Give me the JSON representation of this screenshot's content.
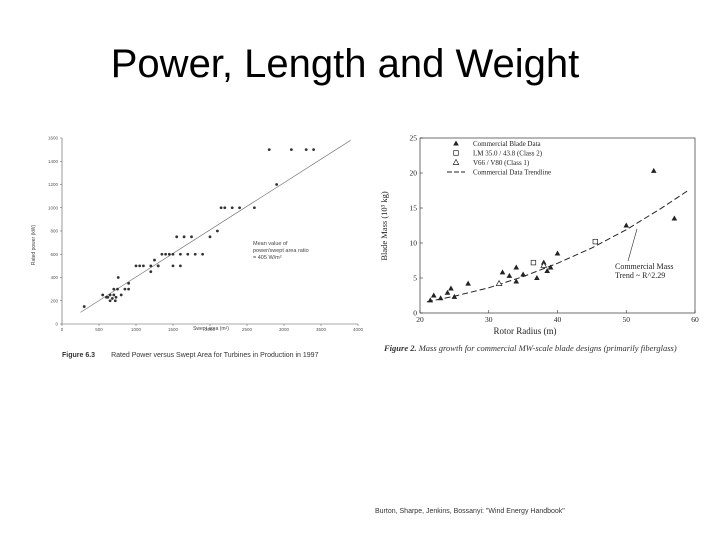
{
  "slide": {
    "title": "Power, Length and Weight",
    "citation": "Burton, Sharpe, Jenkins, Bossanyi: \"Wind Energy Handbook\""
  },
  "chart_data": [
    {
      "type": "scatter",
      "figure_label": "Figure 6.3",
      "caption": "Rated Power versus Swept Area for Turbines in Production in 1997",
      "xlabel": "Swept area (m²)",
      "ylabel": "Rated power (kW)",
      "xlim": [
        0,
        4000
      ],
      "ylim": [
        0,
        1600
      ],
      "x_ticks": [
        "0",
        "500",
        "1000",
        "1500",
        "2000",
        "2500",
        "3000",
        "3500",
        "4000"
      ],
      "y_ticks": [
        "0",
        "200",
        "400",
        "600",
        "800",
        "1000",
        "1200",
        "1400",
        "1600"
      ],
      "annotation": [
        "Mean value of",
        "power/swept area ratio",
        "= 405 W/m²"
      ],
      "grid": false,
      "trend_line": {
        "x": [
          250,
          3900
        ],
        "y": [
          100,
          1580
        ]
      },
      "points": {
        "x": [
          300,
          550,
          600,
          620,
          650,
          650,
          680,
          700,
          700,
          720,
          730,
          750,
          760,
          800,
          850,
          900,
          900,
          1000,
          1050,
          1100,
          1200,
          1200,
          1250,
          1300,
          1300,
          1350,
          1400,
          1450,
          1500,
          1500,
          1550,
          1600,
          1600,
          1650,
          1700,
          1750,
          1800,
          1900,
          2000,
          2100,
          2150,
          2200,
          2300,
          2400,
          2600,
          2800,
          2900,
          3100,
          3300,
          3400
        ],
        "y": [
          150,
          250,
          230,
          230,
          250,
          200,
          220,
          250,
          300,
          200,
          230,
          300,
          400,
          250,
          300,
          350,
          300,
          500,
          500,
          500,
          500,
          450,
          550,
          500,
          500,
          600,
          600,
          600,
          600,
          500,
          750,
          500,
          600,
          750,
          600,
          750,
          600,
          600,
          750,
          800,
          1000,
          1000,
          1000,
          1000,
          1000,
          1500,
          1200,
          1500,
          1500,
          1500
        ]
      }
    },
    {
      "type": "scatter",
      "figure_label": "Figure 2.",
      "caption": "Mass growth for commercial MW-scale blade designs (primarily fiberglass)",
      "xlabel": "Rotor Radius (m)",
      "ylabel": "Blade Mass (10³ kg)",
      "xlim": [
        20,
        60
      ],
      "ylim": [
        0,
        25
      ],
      "x_ticks": [
        "20",
        "30",
        "40",
        "50",
        "60"
      ],
      "y_ticks": [
        "0",
        "5",
        "10",
        "15",
        "20",
        "25"
      ],
      "grid": false,
      "legend_position": "top-left",
      "annotation": [
        "Commercial Mass",
        "Trend ~ R^2.29"
      ],
      "series": [
        {
          "name": "Commercial Blade Data",
          "marker": "filled-triangle",
          "x": [
            21.5,
            22,
            23,
            24,
            24.5,
            25,
            27,
            32,
            33,
            34,
            34,
            35,
            37,
            38,
            38.5,
            39,
            40,
            50,
            54,
            57
          ],
          "y": [
            1.8,
            2.5,
            2.1,
            2.9,
            3.5,
            2.3,
            4.2,
            5.8,
            5.3,
            6.5,
            4.5,
            5.5,
            5.0,
            7.2,
            6.0,
            6.5,
            8.5,
            12.5,
            20.3,
            13.5
          ]
        },
        {
          "name": "LM 35.0 / 43.8 (Class 2)",
          "marker": "open-square",
          "x": [
            36.5,
            45.5
          ],
          "y": [
            7.2,
            10.2
          ]
        },
        {
          "name": "V66 / V80 (Class 1)",
          "marker": "open-triangle",
          "x": [
            31.5,
            38
          ],
          "y": [
            4.2,
            6.8
          ]
        },
        {
          "name": "Commercial Data Trendline",
          "marker": "dashed-line",
          "x": [
            21,
            25,
            30,
            35,
            40,
            45,
            50,
            55,
            59
          ],
          "y": [
            1.6,
            2.4,
            3.6,
            5.2,
            7.1,
            9.3,
            11.9,
            14.9,
            17.5
          ]
        }
      ]
    }
  ]
}
